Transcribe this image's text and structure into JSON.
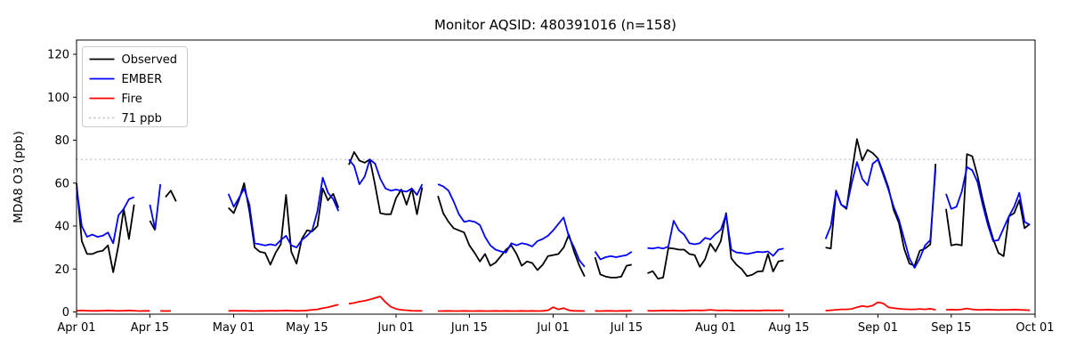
{
  "title": "Monitor AQSID: 480391016 (n=158)",
  "ylabel": "MDA8 O3 (ppb)",
  "legend": {
    "items": [
      {
        "label": "Observed",
        "color": "#000000",
        "style": "solid"
      },
      {
        "label": "EMBER",
        "color": "#0000ff",
        "style": "solid"
      },
      {
        "label": "Fire",
        "color": "#ff0000",
        "style": "solid"
      },
      {
        "label": "71 ppb",
        "color": "#cccccc",
        "style": "dotted"
      }
    ]
  },
  "chart_data": {
    "type": "line",
    "title": "Monitor AQSID: 480391016 (n=158)",
    "xlabel": "",
    "ylabel": "MDA8 O3 (ppb)",
    "x_unit": "day offset from Apr 01",
    "xlim_days": [
      0,
      183
    ],
    "ylim": [
      -1,
      127
    ],
    "yticks": [
      0,
      20,
      40,
      60,
      80,
      100,
      120
    ],
    "x_tick_days": [
      0,
      14,
      30,
      44,
      61,
      75,
      91,
      105,
      122,
      136,
      153,
      167,
      183
    ],
    "x_tick_labels": [
      "Apr 01",
      "Apr 15",
      "May 01",
      "May 15",
      "Jun 01",
      "Jun 15",
      "Jul 01",
      "Jul 15",
      "Aug 01",
      "Aug 15",
      "Sep 01",
      "Sep 15",
      "Oct 01"
    ],
    "threshold": {
      "value": 71,
      "label": "71 ppb",
      "color": "#cccccc",
      "style": "dotted"
    },
    "grid": false,
    "legend_position": "upper left",
    "series": [
      {
        "name": "Observed",
        "color": "#000000",
        "values": [
          60,
          33,
          27,
          27,
          28,
          28.5,
          31,
          18.5,
          31,
          48,
          34,
          50,
          null,
          null,
          42.5,
          38,
          null,
          53.5,
          56.5,
          51.5,
          null,
          null,
          null,
          null,
          null,
          null,
          null,
          null,
          null,
          48.5,
          46,
          52,
          60,
          47,
          30,
          28,
          27.5,
          22,
          27.5,
          31.5,
          54.5,
          28,
          22.5,
          34,
          38,
          37.5,
          40,
          57.5,
          52,
          55,
          48.5,
          null,
          68.5,
          74.5,
          70.5,
          69.5,
          71,
          59,
          46,
          45.5,
          45.5,
          53,
          57,
          50,
          57.5,
          45.5,
          58,
          null,
          null,
          54,
          46,
          42,
          39,
          38,
          37,
          31,
          27.5,
          23.5,
          27,
          21.5,
          23,
          26,
          29,
          31,
          27,
          21.5,
          23.5,
          22.8,
          19.5,
          22,
          26,
          26.5,
          27,
          30,
          36,
          28,
          21.5,
          16.5,
          null,
          25.5,
          17.5,
          16.5,
          16,
          16,
          16.5,
          21.5,
          22,
          null,
          null,
          18,
          19,
          15.5,
          16,
          29.8,
          29.5,
          29,
          29,
          27,
          26.5,
          21,
          24.5,
          31.8,
          28.2,
          33,
          46,
          25,
          22,
          20,
          16.7,
          17.3,
          18.8,
          19,
          27,
          18.8,
          23.5,
          24,
          null,
          null,
          null,
          null,
          null,
          null,
          null,
          30,
          29.5,
          56.5,
          50,
          48,
          65,
          80.5,
          70.5,
          75.5,
          74,
          71.5,
          65,
          58,
          47.5,
          41.5,
          29.5,
          22.5,
          21.5,
          28.5,
          29.5,
          31.5,
          69,
          null,
          48,
          31,
          31.5,
          31,
          73.5,
          72.5,
          63.5,
          52.5,
          42.5,
          34,
          27.5,
          26,
          44.5,
          46,
          52,
          39,
          41
        ]
      },
      {
        "name": "EMBER",
        "color": "#0000ff",
        "values": [
          58,
          40,
          35,
          36,
          35,
          35.5,
          37,
          32,
          45,
          48,
          52.5,
          53.5,
          null,
          null,
          50,
          38.5,
          59.5,
          null,
          null,
          null,
          null,
          null,
          null,
          null,
          null,
          null,
          null,
          null,
          null,
          55,
          49,
          53,
          57.5,
          50,
          32,
          31.5,
          31,
          31.5,
          31,
          33.5,
          35.5,
          31,
          30,
          33.5,
          35.5,
          38,
          47,
          62.5,
          55.5,
          52.5,
          47,
          null,
          71,
          68,
          59.5,
          63,
          71,
          69,
          62,
          57.5,
          56.5,
          57,
          56.5,
          56,
          57.5,
          54.5,
          59.5,
          null,
          null,
          59.5,
          58.5,
          56.5,
          51.5,
          45.5,
          42,
          42.5,
          42,
          40.5,
          35,
          31,
          29,
          28.2,
          27.7,
          32,
          31,
          32,
          31.5,
          30.5,
          33,
          34,
          35.5,
          38,
          41,
          44,
          35,
          30,
          24,
          21,
          null,
          28.2,
          24.5,
          25.5,
          26,
          25.5,
          26,
          26.5,
          28,
          null,
          null,
          29.8,
          29.5,
          30,
          29.5,
          30.5,
          42.5,
          38,
          36,
          32,
          31.5,
          32,
          34.5,
          33.8,
          36.3,
          38.3,
          45.3,
          29,
          27.7,
          27.5,
          27,
          27.5,
          28,
          27.8,
          28.2,
          26.1,
          29,
          29.5,
          null,
          null,
          null,
          null,
          null,
          null,
          null,
          34,
          40,
          56,
          50,
          48.5,
          60,
          69.8,
          62,
          59,
          69,
          71,
          64,
          57,
          49,
          43,
          34,
          25,
          20.5,
          25,
          31,
          33.5,
          66.5,
          null,
          55,
          48,
          49,
          56,
          67.5,
          66,
          60.5,
          50,
          40.5,
          33,
          33.5,
          39,
          44.5,
          49,
          55.5,
          42,
          40.5
        ]
      },
      {
        "name": "Fire",
        "color": "#ff0000",
        "values": [
          0.6,
          0.7,
          0.6,
          0.5,
          0.5,
          0.6,
          0.7,
          0.6,
          0.5,
          0.6,
          0.7,
          0.6,
          0.4,
          0.5,
          0.5,
          null,
          0.5,
          0.4,
          0.5,
          null,
          null,
          null,
          null,
          null,
          null,
          null,
          null,
          null,
          null,
          0.5,
          0.6,
          0.5,
          0.6,
          0.5,
          0.4,
          0.5,
          0.5,
          0.6,
          0.5,
          0.6,
          0.7,
          0.6,
          0.5,
          0.6,
          0.7,
          1,
          1.2,
          1.8,
          2.2,
          2.8,
          3.4,
          null,
          3.8,
          4.2,
          4.8,
          5.2,
          5.8,
          6.5,
          7.2,
          4.5,
          2.4,
          1.4,
          1,
          0.8,
          0.6,
          0.5,
          0.5,
          null,
          null,
          0.4,
          0.4,
          0.5,
          0.4,
          0.4,
          0.5,
          0.4,
          0.4,
          0.5,
          0.4,
          0.4,
          0.5,
          0.4,
          0.5,
          0.4,
          0.4,
          0.5,
          0.4,
          0.5,
          0.4,
          0.5,
          0.8,
          2.2,
          1.2,
          1.8,
          0.8,
          0.5,
          0.5,
          0.4,
          null,
          0.5,
          0.4,
          0.5,
          0.5,
          0.4,
          0.5,
          0.5,
          0.6,
          null,
          null,
          0.6,
          0.5,
          0.6,
          0.7,
          0.6,
          0.7,
          0.6,
          0.6,
          0.7,
          0.8,
          0.7,
          0.8,
          1,
          0.8,
          0.7,
          0.8,
          0.7,
          0.6,
          0.7,
          0.6,
          0.7,
          0.6,
          0.7,
          0.8,
          0.7,
          0.8,
          0.7,
          null,
          null,
          null,
          null,
          null,
          null,
          null,
          0.6,
          0.8,
          1,
          1.2,
          1.2,
          1.4,
          2.2,
          2.8,
          2.4,
          3,
          4.5,
          4,
          2.2,
          1.8,
          1.5,
          1.3,
          1.2,
          1.2,
          1.4,
          1.2,
          1.5,
          1,
          null,
          1,
          1.1,
          1,
          1.2,
          1.6,
          1.2,
          1,
          1,
          1.1,
          1,
          0.9,
          1,
          1,
          1.1,
          1,
          0.9,
          0.8
        ]
      }
    ]
  }
}
